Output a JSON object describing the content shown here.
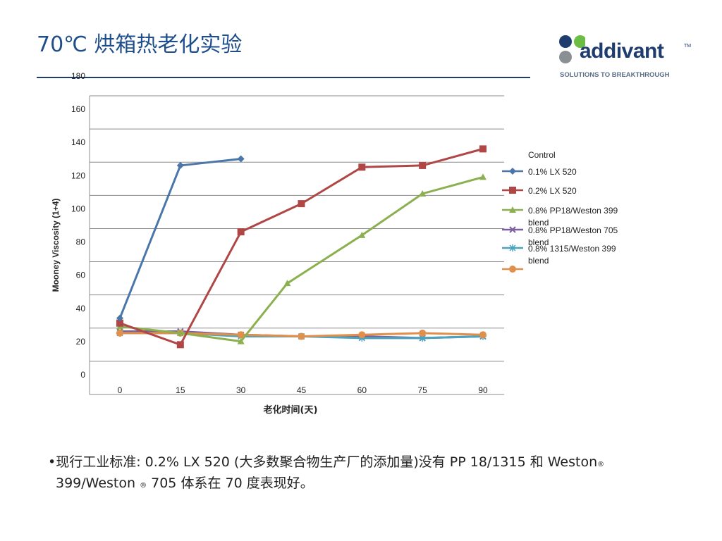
{
  "slide": {
    "title": "70℃ 烘箱热老化实验",
    "bullet": {
      "dot": "•",
      "line1": "现行工业标准: 0.2% LX 520 (大多数聚合物生产厂的添加量)没有 PP 18/1315 和 Weston",
      "line2_a": "399/Weston ",
      "line2_b": " 705 体系在 70 度表现好。",
      "registered": "®"
    }
  },
  "logo": {
    "word": "addivant",
    "tm": "TM",
    "tagline": "SOLUTIONS TO BREAKTHROUGH",
    "colors": {
      "blue": "#1f3c6e",
      "green": "#6cbd45",
      "grey": "#8a8f94"
    }
  },
  "chart_data": {
    "type": "line",
    "xlabel": "老化时间(天)",
    "ylabel": "Mooney Viscosity (1+4)",
    "x": [
      0,
      15,
      30,
      45,
      60,
      75,
      90
    ],
    "x_ticks": [
      "0",
      "15",
      "30",
      "45",
      "60",
      "75",
      "90"
    ],
    "y_ticks": [
      "0",
      "20",
      "40",
      "60",
      "80",
      "100",
      "120",
      "140",
      "160",
      "180"
    ],
    "ylim": [
      0,
      180
    ],
    "grid": "horizontal",
    "legend_position": "right",
    "legend_title": "Control",
    "series": [
      {
        "name": "0.1% LX 520",
        "color": "#4a76a8",
        "marker": "diamond",
        "values": [
          46,
          138,
          142,
          null,
          null,
          null,
          null
        ]
      },
      {
        "name": "0.2% LX 520",
        "color": "#b04646",
        "marker": "square",
        "values": [
          43,
          30,
          98,
          115,
          137,
          138,
          148
        ]
      },
      {
        "name": "0.8% PP18/Weston 399 blend",
        "color": "#8cb050",
        "marker": "triangle",
        "values": [
          41,
          37,
          32,
          null,
          96,
          121,
          131
        ]
      },
      {
        "name": "0.8% PP18/Weston 705 blend",
        "color": "#7b5f9e",
        "marker": "x",
        "values": [
          38,
          38,
          36,
          35,
          35,
          34,
          35
        ]
      },
      {
        "name": "0.8% 1315/Weston 399 blend",
        "color": "#4aa3c0",
        "marker": "star",
        "values": [
          37,
          37,
          35,
          35,
          34,
          34,
          35
        ]
      },
      {
        "name": "",
        "color": "#e0904a",
        "marker": "circle",
        "values": [
          37,
          37,
          36,
          35,
          36,
          37,
          36
        ]
      }
    ],
    "series_bridge": {
      "series": 2,
      "from": 30,
      "to": 45,
      "value": 67
    }
  }
}
